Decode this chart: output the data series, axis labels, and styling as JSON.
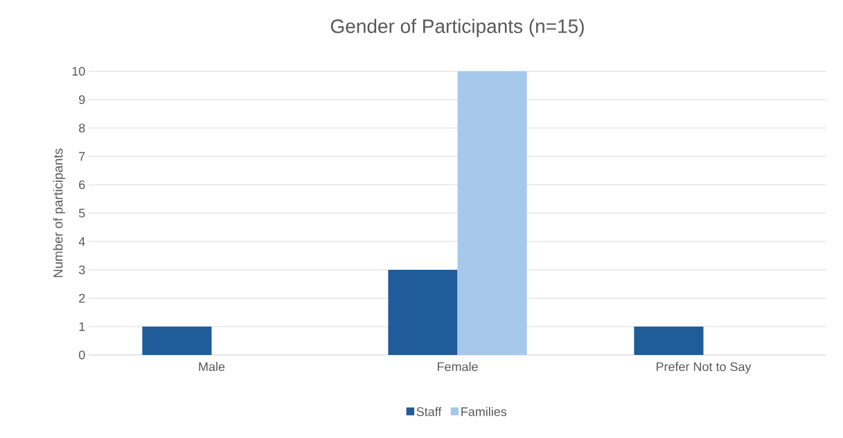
{
  "chart_data": {
    "type": "bar",
    "title": "Gender of Participants (n=15)",
    "ylabel": "Number of participants",
    "categories": [
      "Male",
      "Female",
      "Prefer Not to Say"
    ],
    "series": [
      {
        "name": "Staff",
        "color": "#1f5c99",
        "values": [
          1,
          3,
          1
        ]
      },
      {
        "name": "Families",
        "color": "#a6c8eb",
        "values": [
          0,
          10,
          0
        ]
      }
    ],
    "ylim": [
      0,
      10
    ],
    "yticks": [
      0,
      1,
      2,
      3,
      4,
      5,
      6,
      7,
      8,
      9,
      10
    ],
    "grid": "y",
    "legend": "bottom"
  }
}
